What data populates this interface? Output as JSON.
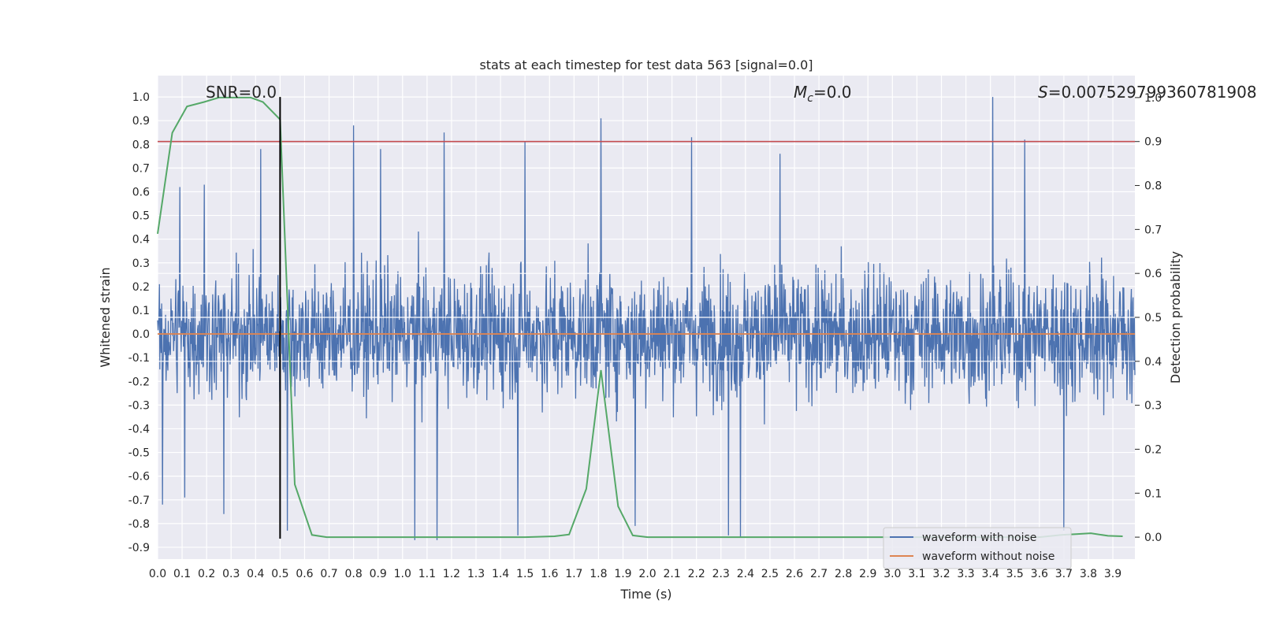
{
  "chart_data": {
    "type": "line",
    "title": "stats at each timestep for test data 563 [signal=0.0]",
    "xlabel": "Time (s)",
    "ylabel": "Whitened strain",
    "ylabel_right": "Detection probability",
    "xlim": [
      0.0,
      3.99
    ],
    "ylim": [
      -0.95,
      1.09
    ],
    "ylim_right": [
      -0.05,
      1.05
    ],
    "x_ticks": [
      0.0,
      0.1,
      0.2,
      0.3,
      0.4,
      0.5,
      0.6,
      0.7,
      0.8,
      0.9,
      1.0,
      1.1,
      1.2,
      1.3,
      1.4,
      1.5,
      1.6,
      1.7,
      1.8,
      1.9,
      2.0,
      2.1,
      2.2,
      2.3,
      2.4,
      2.5,
      2.6,
      2.7,
      2.8,
      2.9,
      3.0,
      3.1,
      3.2,
      3.3,
      3.4,
      3.5,
      3.6,
      3.7,
      3.8,
      3.9
    ],
    "x_tick_labels": [
      "0.0",
      "0.1",
      "0.2",
      "0.3",
      "0.4",
      "0.5",
      "0.6",
      "0.7",
      "0.8",
      "0.9",
      "1.0",
      "1.1",
      "1.2",
      "1.3",
      "1.4",
      "1.5",
      "1.6",
      "1.7",
      "1.8",
      "1.9",
      "2.0",
      "2.1",
      "2.2",
      "2.3",
      "2.4",
      "2.5",
      "2.6",
      "2.7",
      "2.8",
      "2.9",
      "3.0",
      "3.1",
      "3.2",
      "3.3",
      "3.4",
      "3.5",
      "3.6",
      "3.7",
      "3.8",
      "3.9"
    ],
    "y_ticks": [
      1.0,
      0.9,
      0.8,
      0.7,
      0.6,
      0.5,
      0.4,
      0.3,
      0.2,
      0.1,
      0.0,
      -0.1,
      -0.2,
      -0.3,
      -0.4,
      -0.5,
      -0.6,
      -0.7,
      -0.8,
      -0.9
    ],
    "y_tick_labels": [
      "1.0",
      "0.9",
      "0.8",
      "0.7",
      "0.6",
      "0.5",
      "0.4",
      "0.3",
      "0.2",
      "0.1",
      "0.0",
      "-0.1",
      "-0.2",
      "-0.3",
      "-0.4",
      "-0.5",
      "-0.6",
      "-0.7",
      "-0.8",
      "-0.9"
    ],
    "y_right_ticks": [
      1.0,
      0.9,
      0.8,
      0.7,
      0.6,
      0.5,
      0.4,
      0.3,
      0.2,
      0.1,
      0.0
    ],
    "y_right_tick_labels": [
      "1.0",
      "0.9",
      "0.8",
      "0.7",
      "0.6",
      "0.5",
      "0.4",
      "0.3",
      "0.2",
      "0.1",
      "0.0"
    ],
    "series": [
      {
        "name": "waveform with noise",
        "color": "#4c72b0",
        "description": "dense noisy whitened strain, roughly ±0.5 with spikes",
        "spikes": [
          {
            "x": 0.02,
            "y": -0.72
          },
          {
            "x": 0.09,
            "y": 0.62
          },
          {
            "x": 0.11,
            "y": -0.69
          },
          {
            "x": 0.19,
            "y": 0.63
          },
          {
            "x": 0.27,
            "y": -0.76
          },
          {
            "x": 0.42,
            "y": 0.78
          },
          {
            "x": 0.53,
            "y": -0.83
          },
          {
            "x": 0.8,
            "y": 0.88
          },
          {
            "x": 0.91,
            "y": 0.78
          },
          {
            "x": 1.05,
            "y": -0.87
          },
          {
            "x": 1.14,
            "y": -0.87
          },
          {
            "x": 1.17,
            "y": 0.85
          },
          {
            "x": 1.47,
            "y": -0.85
          },
          {
            "x": 1.5,
            "y": 0.81
          },
          {
            "x": 1.81,
            "y": 0.91
          },
          {
            "x": 1.95,
            "y": -0.81
          },
          {
            "x": 2.18,
            "y": 0.83
          },
          {
            "x": 2.33,
            "y": -0.85
          },
          {
            "x": 2.38,
            "y": -0.86
          },
          {
            "x": 2.54,
            "y": 0.76
          },
          {
            "x": 3.41,
            "y": 1.0
          },
          {
            "x": 3.54,
            "y": 0.82
          },
          {
            "x": 3.7,
            "y": -0.83
          }
        ]
      },
      {
        "name": "waveform without noise",
        "color": "#dd8452",
        "constant": 0.0
      },
      {
        "name": "detection probability",
        "color": "#55a868",
        "axis": "right",
        "x": [
          0.0,
          0.06,
          0.12,
          0.19,
          0.25,
          0.32,
          0.38,
          0.43,
          0.5,
          0.56,
          0.63,
          0.69,
          0.75,
          0.82,
          0.88,
          1.0,
          1.25,
          1.5,
          1.62,
          1.68,
          1.75,
          1.81,
          1.88,
          1.94,
          2.0,
          2.25,
          2.5,
          3.0,
          3.5,
          3.6,
          3.69,
          3.75,
          3.81,
          3.88,
          3.94
        ],
        "y": [
          0.69,
          0.92,
          0.98,
          0.99,
          1.0,
          1.0,
          1.0,
          0.99,
          0.95,
          0.12,
          0.005,
          0.0,
          0.0,
          0.0,
          0.0,
          0.0,
          0.0,
          0.0,
          0.002,
          0.006,
          0.11,
          0.38,
          0.07,
          0.004,
          0.0,
          0.0,
          0.0,
          0.0,
          0.0,
          0.0,
          0.005,
          0.007,
          0.009,
          0.003,
          0.002
        ]
      }
    ],
    "threshold_line": {
      "y_right": 0.9,
      "color": "#c44e52"
    },
    "marker_line": {
      "x": 0.5,
      "color": "#000000"
    },
    "annotations": {
      "snr": "SNR=0.0",
      "mc_symbol": "M",
      "mc_sub": "c",
      "mc_value": "=0.0",
      "s_symbol": "S",
      "s_value": "=0.007529799360781908"
    },
    "legend": {
      "placement": "lower-right",
      "entries": [
        {
          "label": "waveform with noise",
          "color": "#4c72b0"
        },
        {
          "label": "waveform without noise",
          "color": "#dd8452"
        }
      ]
    },
    "grid": true
  }
}
